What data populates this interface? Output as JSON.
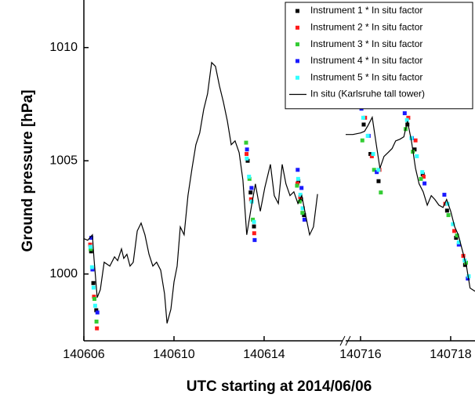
{
  "chart_data": {
    "type": "line",
    "x_label": "UTC starting at 2014/06/06",
    "y_label": "Ground pressure [hPa]",
    "ylim": [
      997.05,
      1012.1
    ],
    "yticks": [
      1000,
      1005,
      1010
    ],
    "x_segments": [
      {
        "xlim": [
          140606,
          140617.48
        ],
        "xticks": [
          140606,
          140610,
          140614
        ]
      },
      {
        "xlim": [
          140715.67,
          140718.54
        ],
        "xticks": [
          140716,
          140718
        ]
      }
    ],
    "legend": "upper right",
    "series": [
      {
        "name": "Instrument 1 * In situ factor",
        "type": "scatter",
        "color": "#000000",
        "x": [
          140606.32,
          140606.42,
          140606.55,
          140613.27,
          140613.4,
          140613.55,
          140615.52,
          140615.64,
          140615.77,
          140716.07,
          140716.22,
          140716.4,
          140717.04,
          140717.2,
          140717.38,
          140717.92,
          140718.12,
          140718.32
        ],
        "values": [
          1001.0,
          999.6,
          998.4,
          1005.0,
          1003.6,
          1002.1,
          1004.1,
          1003.3,
          1002.6,
          1006.6,
          1005.3,
          1004.1,
          1006.6,
          1005.5,
          1004.4,
          1002.8,
          1001.6,
          1000.4
        ]
      },
      {
        "name": "Instrument 2 * In situ factor",
        "type": "scatter",
        "color": "#ff1a1a",
        "x": [
          140606.28,
          140606.45,
          140606.58,
          140613.22,
          140613.42,
          140613.56,
          140615.48,
          140615.6,
          140615.72,
          140716.1,
          140716.25,
          140716.42,
          140717.06,
          140717.22,
          140717.4,
          140717.88,
          140718.08,
          140718.28
        ],
        "values": [
          1001.3,
          999.0,
          997.6,
          1005.3,
          1003.3,
          1001.8,
          1004.0,
          1003.4,
          1002.9,
          1006.9,
          1005.2,
          1004.6,
          1006.9,
          1005.9,
          1004.3,
          1003.1,
          1001.9,
          1000.8
        ]
      },
      {
        "name": "Instrument 3 * In situ factor",
        "type": "scatter",
        "color": "#33cc33",
        "x": [
          140606.3,
          140606.47,
          140606.56,
          140613.2,
          140613.35,
          140613.5,
          140615.46,
          140615.58,
          140615.7,
          140716.04,
          140716.3,
          140716.45,
          140717.0,
          140717.16,
          140717.34,
          140717.95,
          140718.14,
          140718.34
        ],
        "values": [
          1001.1,
          998.9,
          997.9,
          1005.8,
          1004.2,
          1002.4,
          1003.9,
          1003.2,
          1002.7,
          1005.9,
          1004.6,
          1003.6,
          1006.4,
          1005.4,
          1004.2,
          1002.6,
          1001.7,
          1000.5
        ]
      },
      {
        "name": "Instrument 4 * In situ factor",
        "type": "scatter",
        "color": "#1a1aff",
        "x": [
          140606.33,
          140606.38,
          140606.6,
          140613.24,
          140613.44,
          140613.58,
          140615.49,
          140615.66,
          140615.79,
          140716.02,
          140716.18,
          140716.36,
          140716.98,
          140717.14,
          140717.42,
          140717.86,
          140718.18,
          140718.38
        ],
        "values": [
          1001.6,
          1000.2,
          998.3,
          1005.5,
          1003.8,
          1001.5,
          1004.6,
          1003.8,
          1002.4,
          1007.3,
          1006.1,
          1004.5,
          1007.1,
          1006.0,
          1004.0,
          1003.5,
          1001.3,
          999.8
        ]
      },
      {
        "name": "Instrument 5 * In situ factor",
        "type": "scatter",
        "color": "#33ffff",
        "x": [
          140606.29,
          140606.36,
          140606.43,
          140606.5,
          140613.23,
          140613.33,
          140613.45,
          140613.55,
          140615.51,
          140615.61,
          140615.71,
          140716.06,
          140716.16,
          140716.28,
          140716.4,
          140717.03,
          140717.13,
          140717.25,
          140717.37,
          140717.93,
          140718.05,
          140718.18,
          140718.31,
          140718.4
        ],
        "values": [
          1001.2,
          1000.3,
          999.4,
          998.6,
          1005.1,
          1004.3,
          1003.2,
          1002.3,
          1004.2,
          1003.5,
          1002.9,
          1006.9,
          1006.1,
          1005.3,
          1004.6,
          1006.8,
          1006.0,
          1005.2,
          1004.5,
          1003.1,
          1002.2,
          1001.4,
          1000.6,
          999.9
        ]
      },
      {
        "name": "In situ (Karlsruhe tall tower)",
        "type": "line",
        "color": "#000000",
        "x": [
          140606.0,
          140606.17,
          140606.38,
          140606.45,
          140606.59,
          140606.73,
          140606.9,
          140607.15,
          140607.36,
          140607.5,
          140607.67,
          140607.77,
          140607.91,
          140608.05,
          140608.19,
          140608.37,
          140608.54,
          140608.71,
          140608.89,
          140609.06,
          140609.23,
          140609.41,
          140609.58,
          140609.69,
          140609.86,
          140610.0,
          140610.14,
          140610.28,
          140610.45,
          140610.62,
          140610.8,
          140610.97,
          140611.14,
          140611.32,
          140611.49,
          140611.67,
          140611.84,
          140612.02,
          140612.19,
          140612.37,
          140612.54,
          140612.71,
          140612.89,
          140613.06,
          140613.23,
          140613.4,
          140613.61,
          140613.83,
          140614.03,
          140614.28,
          140614.45,
          140614.63,
          140614.8,
          140614.97,
          140615.15,
          140615.32,
          140615.5,
          140615.67,
          140615.84,
          140616.02,
          140616.19,
          140616.37,
          null,
          140715.67,
          140715.83,
          140716.0,
          140716.09,
          140716.17,
          140716.26,
          140716.35,
          140716.43,
          140716.52,
          140716.61,
          140716.7,
          140716.78,
          140716.87,
          140716.96,
          140717.04,
          140717.13,
          140717.22,
          140717.3,
          140717.39,
          140717.48,
          140717.57,
          140717.65,
          140717.74,
          140717.83,
          140717.91,
          140718.0,
          140718.09,
          140718.17,
          140718.26,
          140718.35,
          140718.43,
          140718.54
        ],
        "values": [
          1001.56,
          1001.49,
          1001.73,
          1000.69,
          998.96,
          999.31,
          1000.52,
          1000.35,
          1000.76,
          1000.59,
          1001.11,
          1000.69,
          1000.87,
          1000.35,
          1000.52,
          1001.9,
          1002.25,
          1001.73,
          1000.87,
          1000.35,
          1000.52,
          1000.17,
          999.13,
          997.82,
          998.44,
          999.65,
          1000.35,
          1002.08,
          1001.73,
          1003.46,
          1004.67,
          1005.71,
          1006.23,
          1007.27,
          1007.96,
          1009.34,
          1009.17,
          1008.3,
          1007.61,
          1006.75,
          1005.71,
          1005.88,
          1005.36,
          1004.15,
          1001.73,
          1002.77,
          1003.98,
          1002.77,
          1003.81,
          1004.84,
          1003.46,
          1003.11,
          1004.84,
          1003.98,
          1003.46,
          1003.63,
          1003.11,
          1003.46,
          1002.6,
          1001.73,
          1002.08,
          1003.53,
          null,
          1006.16,
          1006.16,
          1006.23,
          1006.3,
          1006.57,
          1006.92,
          1005.71,
          1004.67,
          1005.19,
          1005.36,
          1005.54,
          1005.88,
          1005.95,
          1006.06,
          1006.75,
          1005.88,
          1004.67,
          1003.98,
          1003.63,
          1003.04,
          1003.46,
          1003.29,
          1003.04,
          1002.94,
          1003.29,
          1002.77,
          1002.08,
          1001.73,
          1001.04,
          1000.35,
          999.38,
          999.24
        ]
      }
    ]
  }
}
